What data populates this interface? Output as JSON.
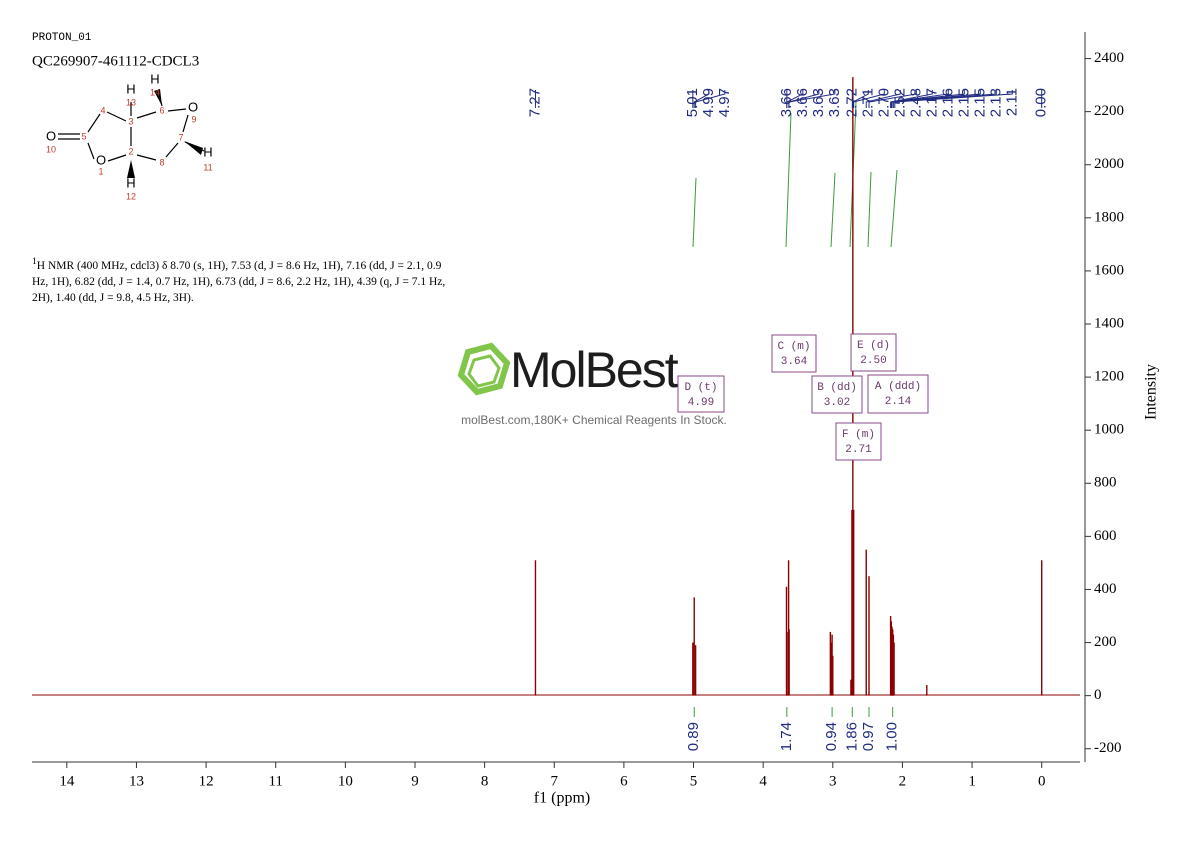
{
  "chart_data": {
    "type": "nmr",
    "header": "PROTON_01",
    "title": "QC269907-461112-CDCL3",
    "xlabel": "f1 (ppm)",
    "ylabel": "Intensity",
    "xlim": [
      14.5,
      -0.55
    ],
    "ylim": [
      -250,
      2500
    ],
    "xticks": [
      14,
      13,
      12,
      11,
      10,
      9,
      8,
      7,
      6,
      5,
      4,
      3,
      2,
      1,
      0
    ],
    "yticks": [
      -200,
      0,
      200,
      400,
      600,
      800,
      1000,
      1200,
      1400,
      1600,
      1800,
      2000,
      2200,
      2400
    ],
    "color": "#8b0000",
    "x": [
      7.27,
      5.01,
      4.99,
      4.97,
      3.665,
      3.657,
      3.635,
      3.627,
      3.035,
      3.02,
      3.01,
      3.0,
      2.74,
      2.725,
      2.712,
      2.7,
      2.52,
      2.48,
      2.17,
      2.16,
      2.15,
      2.14,
      2.13,
      2.12,
      1.65,
      0.0
    ],
    "values": [
      510,
      200,
      370,
      190,
      410,
      240,
      510,
      250,
      240,
      200,
      230,
      150,
      60,
      700,
      2330,
      700,
      550,
      450,
      300,
      280,
      260,
      250,
      230,
      200,
      40,
      510
    ],
    "peak_labels": [
      7.27,
      5.01,
      4.99,
      4.97,
      3.66,
      3.66,
      3.63,
      3.63,
      2.72,
      2.71,
      {
        "value": 2.7,
        "label": "2.70"
      },
      2.52,
      2.48,
      2.17,
      2.16,
      2.15,
      2.15,
      2.13,
      2.11,
      {
        "value": 0,
        "label": "0.00"
      }
    ],
    "integrals": {
      "x": [
        4.99,
        3.66,
        3.01,
        2.72,
        2.48,
        2.14
      ],
      "values": [
        0.89,
        1.74,
        0.94,
        1.86,
        0.97,
        1
      ],
      "value_labels": [
        "0.89",
        "1.74",
        "0.94",
        "1.86",
        "0.97",
        "1.00"
      ]
    },
    "multiplets": [
      {
        "label": "D (t)",
        "shift": "4.99"
      },
      {
        "label": "C (m)",
        "shift": "3.64"
      },
      {
        "label": "B (dd)",
        "shift": "3.02"
      },
      {
        "label": "E (d)",
        "shift": "2.50"
      },
      {
        "label": "A (ddd)",
        "shift": "2.14"
      },
      {
        "label": "F (m)",
        "shift": "2.71"
      }
    ]
  },
  "molecule": {
    "symbols": [
      "O",
      "O",
      "O",
      "H",
      "H",
      "H",
      "H"
    ],
    "numbers": [
      "1",
      "2",
      "3",
      "4",
      "5",
      "6",
      "7",
      "8",
      "9",
      "10",
      "11",
      "12",
      "13",
      "14"
    ]
  },
  "description": {
    "sup": "1",
    "text": "H NMR (400 MHz, cdcl3) δ 8.70 (s, 1H), 7.53 (d, J = 8.6 Hz, 1H), 7.16 (dd, J = 2.1, 0.9 Hz, 1H), 6.82 (dd, J = 1.4, 0.7 Hz, 1H), 6.73 (dd, J = 8.6, 2.2 Hz, 1H), 4.39 (q, J = 7.1 Hz, 2H), 1.40 (dd, J = 9.8, 4.5 Hz, 3H)."
  },
  "watermark": {
    "brand": "MolBest",
    "tagline": "molBest.com,180K+ Chemical Reagents In Stock."
  }
}
